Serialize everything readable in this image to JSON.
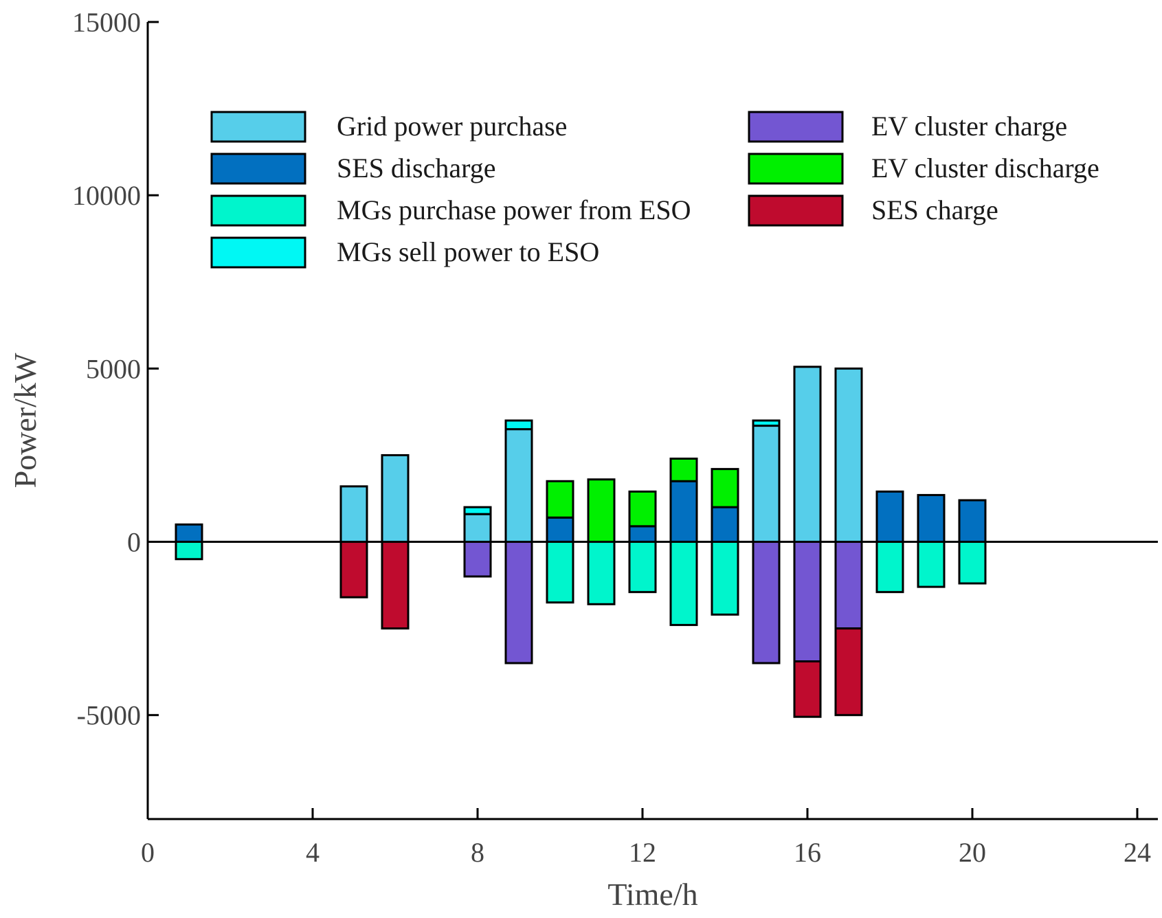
{
  "chart_data": {
    "type": "bar",
    "stacked": true,
    "xlabel": "Time/h",
    "ylabel": "Power/kW",
    "xlim": [
      0,
      24.5
    ],
    "ylim": [
      -8000,
      15000
    ],
    "xticks": [
      0,
      4,
      8,
      12,
      16,
      20,
      24
    ],
    "xtick_labels": [
      "0",
      "4",
      "8",
      "12",
      "16",
      "20",
      "24"
    ],
    "yticks": [
      -5000,
      0,
      5000,
      10000,
      15000
    ],
    "ytick_labels": [
      "-5000",
      "0",
      "5000",
      "10000",
      "15000"
    ],
    "grid": false,
    "legend_position": "top, two columns",
    "x": [
      1,
      5,
      6,
      8,
      9,
      10,
      11,
      12,
      13,
      14,
      15,
      16,
      17,
      18,
      19,
      20
    ],
    "series": [
      {
        "name": "Grid power purchase",
        "color": "#56CEEA",
        "values": [
          0,
          1600,
          2500,
          800,
          3250,
          0,
          0,
          0,
          0,
          0,
          3350,
          5050,
          5000,
          0,
          0,
          0
        ]
      },
      {
        "name": "SES discharge",
        "color": "#0270C0",
        "values": [
          500,
          0,
          0,
          0,
          0,
          700,
          0,
          450,
          1750,
          1000,
          0,
          0,
          0,
          1450,
          1350,
          1200
        ]
      },
      {
        "name": "MGs purchase power from ESO",
        "color": "#00F5CC",
        "values": [
          -500,
          0,
          0,
          0,
          0,
          -1750,
          -1800,
          -1450,
          -2400,
          -2100,
          0,
          0,
          0,
          -1450,
          -1300,
          -1200
        ]
      },
      {
        "name": "MGs sell power to ESO",
        "color": "#00F8F4",
        "values": [
          0,
          0,
          0,
          200,
          250,
          0,
          0,
          0,
          0,
          0,
          150,
          0,
          0,
          0,
          0,
          0
        ]
      },
      {
        "name": "EV cluster charge",
        "color": "#7356D2",
        "values": [
          0,
          0,
          0,
          -1000,
          -3500,
          0,
          0,
          0,
          0,
          0,
          -3500,
          -3450,
          -2500,
          0,
          0,
          0
        ]
      },
      {
        "name": "EV cluster discharge",
        "color": "#00F000",
        "values": [
          0,
          0,
          0,
          0,
          0,
          1050,
          1800,
          1000,
          650,
          1100,
          0,
          0,
          0,
          0,
          0,
          0
        ]
      },
      {
        "name": "SES charge",
        "color": "#BF0B2E",
        "values": [
          0,
          -1600,
          -2500,
          0,
          0,
          0,
          0,
          0,
          0,
          0,
          0,
          -1600,
          -2500,
          0,
          0,
          0
        ]
      }
    ]
  }
}
